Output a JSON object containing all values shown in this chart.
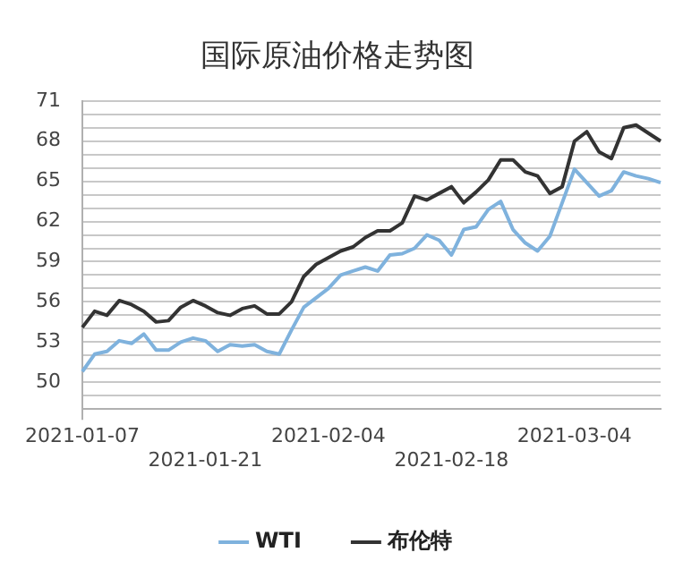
{
  "chart_data": {
    "type": "line",
    "title": "国际原油价格走势图",
    "categories": [
      "2021-01-07",
      null,
      null,
      null,
      null,
      null,
      null,
      null,
      null,
      null,
      "2021-01-21",
      null,
      null,
      null,
      null,
      null,
      null,
      null,
      null,
      null,
      "2021-02-04",
      null,
      null,
      null,
      null,
      null,
      null,
      null,
      null,
      null,
      "2021-02-18",
      null,
      null,
      null,
      null,
      null,
      null,
      null,
      null,
      null,
      "2021-03-04",
      null,
      null,
      null,
      null,
      null,
      null,
      null
    ],
    "series": [
      {
        "name": "WTI",
        "color": "#7fb2dd",
        "values": [
          50.8,
          52.1,
          52.3,
          53.1,
          52.9,
          53.6,
          52.4,
          52.4,
          53.0,
          53.3,
          53.1,
          52.3,
          52.8,
          52.7,
          52.8,
          52.3,
          52.1,
          53.9,
          55.6,
          56.3,
          57.0,
          58.0,
          58.3,
          58.6,
          58.3,
          59.5,
          59.6,
          60.0,
          61.0,
          60.6,
          59.5,
          61.4,
          61.6,
          62.9,
          63.5,
          61.4,
          60.4,
          59.8,
          60.9,
          63.4,
          65.9,
          64.9,
          63.9,
          64.3,
          65.7,
          65.4,
          65.2,
          64.9
        ]
      },
      {
        "name": "布伦特",
        "color": "#333333",
        "values": [
          54.1,
          55.3,
          55.0,
          56.1,
          55.8,
          55.3,
          54.5,
          54.6,
          55.6,
          56.1,
          55.7,
          55.2,
          55.0,
          55.5,
          55.7,
          55.1,
          55.1,
          56.0,
          57.9,
          58.8,
          59.3,
          59.8,
          60.1,
          60.8,
          61.3,
          61.3,
          61.9,
          63.9,
          63.6,
          64.1,
          64.6,
          63.4,
          64.2,
          65.1,
          66.6,
          66.6,
          65.7,
          65.4,
          64.1,
          64.6,
          68.0,
          68.7,
          67.2,
          66.7,
          69.0,
          69.2,
          68.6,
          68.0
        ]
      }
    ],
    "ylim": [
      48,
      71
    ],
    "yticks": [
      {
        "value": 48,
        "label": null
      },
      {
        "value": 49,
        "label": null
      },
      50,
      {
        "value": 51,
        "label": null
      },
      {
        "value": 52,
        "label": null
      },
      53,
      {
        "value": 54,
        "label": null
      },
      {
        "value": 55,
        "label": null
      },
      56,
      {
        "value": 57,
        "label": null
      },
      {
        "value": 58,
        "label": null
      },
      59,
      {
        "value": 60,
        "label": null
      },
      {
        "value": 61,
        "label": null
      },
      62,
      {
        "value": 63,
        "label": null
      },
      {
        "value": 64,
        "label": null
      },
      65,
      {
        "value": 66,
        "label": null
      },
      {
        "value": 67,
        "label": null
      },
      68,
      {
        "value": 69,
        "label": null
      },
      {
        "value": 70,
        "label": null
      },
      71
    ],
    "grid": true,
    "legend": "bottom",
    "marker": "none",
    "line_style": "solid"
  }
}
